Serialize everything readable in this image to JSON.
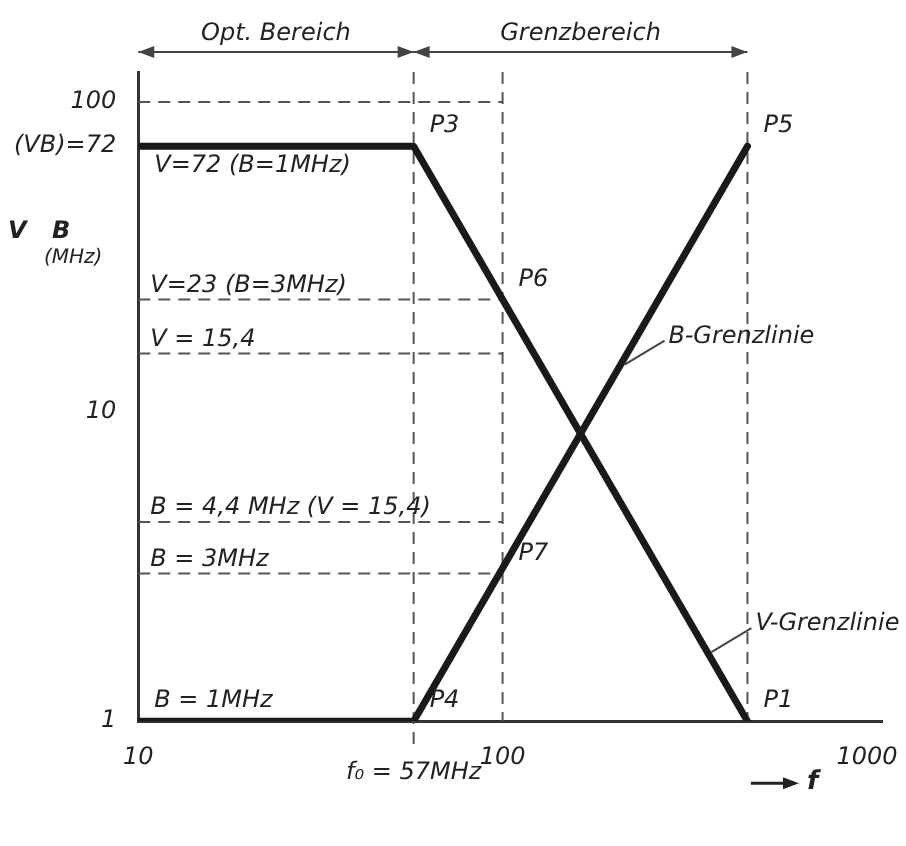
{
  "chart_data": {
    "type": "line",
    "xlabel": "f",
    "ylabel": "V  B (MHz)",
    "log": "xy",
    "xlim": [
      10,
      1100
    ],
    "xticks": [
      10,
      100,
      1000
    ],
    "ylim": [
      1,
      125
    ],
    "yticks": [
      1,
      10,
      {
        "value": 72,
        "label": "(VB)=72"
      },
      100
    ],
    "grid": false,
    "legend": false,
    "marker": "none",
    "line_style": "solid",
    "series": [
      {
        "name": "V-Grenzlinie",
        "color": "#1a1a1a",
        "x": [
          10,
          57,
          470
        ],
        "values": [
          72,
          72,
          1
        ]
      },
      {
        "name": "B-Grenzlinie",
        "color": "#1a1a1a",
        "x": [
          10,
          57,
          470
        ],
        "values": [
          1,
          1,
          72
        ]
      }
    ],
    "ref_lines": [
      {
        "axis": "y",
        "value": 100,
        "label": null,
        "line_style": "dashed",
        "color": "#555555"
      },
      {
        "axis": "y",
        "value": 23,
        "label": "V=23 (B=3MHz)",
        "line_style": "dashed",
        "color": "#555555"
      },
      {
        "axis": "y",
        "value": 15.4,
        "label": "V = 15,4",
        "line_style": "dashed",
        "color": "#555555"
      },
      {
        "axis": "y",
        "value": 4.4,
        "label": "B = 4,4 MHz (V = 15,4)",
        "line_style": "dashed",
        "color": "#555555"
      },
      {
        "axis": "y",
        "value": 3,
        "label": "B = 3MHz",
        "line_style": "dashed",
        "color": "#555555"
      },
      {
        "axis": "x",
        "value": 57,
        "label": "f₀ = 57MHz",
        "line_style": "dashed",
        "color": "#555555"
      },
      {
        "axis": "x",
        "value": 100,
        "label": null,
        "line_style": "dashed",
        "color": "#555555"
      },
      {
        "axis": "x",
        "value": 470,
        "label": null,
        "line_style": "dashed",
        "color": "#555555"
      }
    ],
    "annotations": [
      "Opt. Bereich",
      "Grenzbereich",
      {
        "text": "P3",
        "x": 57,
        "y": 72
      },
      {
        "text": "P5",
        "x": 470,
        "y": 72
      },
      {
        "text": "P6",
        "x": 100,
        "y": 23
      },
      {
        "text": "P7",
        "x": 100,
        "y": 3
      },
      {
        "text": "P4",
        "x": 57,
        "y": 1
      },
      {
        "text": "P1",
        "x": 470,
        "y": 1
      },
      {
        "text": "V=72 (B=1MHz)",
        "x": 10,
        "y": 72
      },
      {
        "text": "B = 1MHz",
        "x": 10,
        "y": 1
      }
    ]
  }
}
